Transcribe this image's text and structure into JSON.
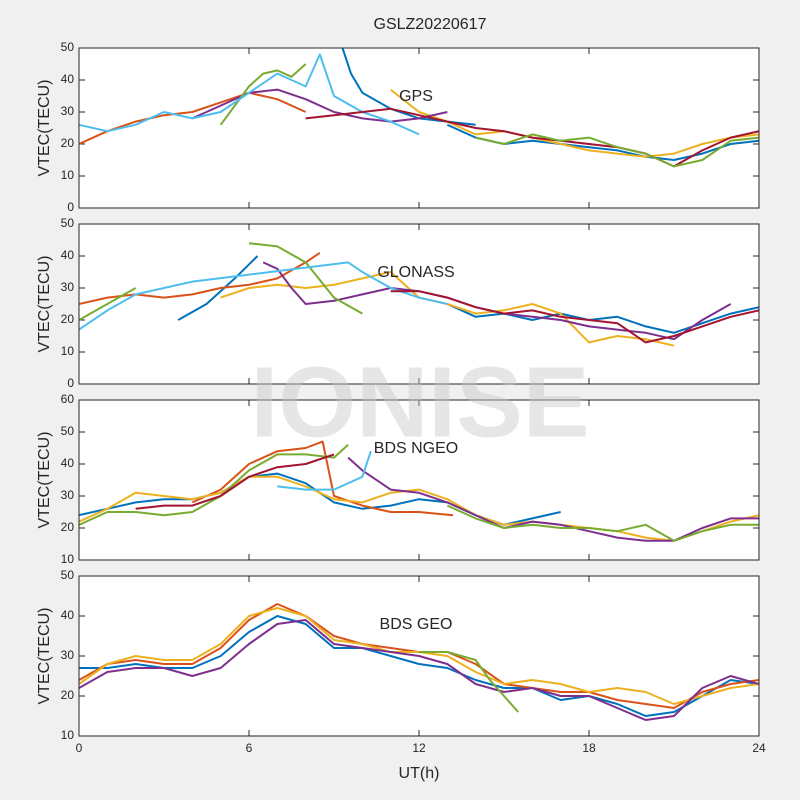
{
  "title": "GSLZ20220617",
  "watermark": "IONISE",
  "chart_data": [
    {
      "type": "line",
      "annotation": "GPS",
      "ylabel": "VTEC(TECU)",
      "xlim": [
        0,
        24
      ],
      "xticks": [
        0,
        6,
        12,
        18,
        24
      ],
      "ylim": [
        0,
        50
      ],
      "yticks": [
        0,
        10,
        20,
        30,
        40,
        50
      ],
      "series": [
        {
          "color": "#0072BD",
          "x": [
            9.3,
            9.6,
            10,
            11,
            12,
            13,
            14
          ],
          "values": [
            50,
            42,
            36,
            31,
            28,
            27,
            26
          ]
        },
        {
          "color": "#0072BD",
          "x": [
            13,
            14,
            15,
            16,
            17,
            18,
            19,
            20,
            21,
            22,
            23,
            24
          ],
          "values": [
            26,
            22,
            20,
            21,
            20,
            19,
            18,
            16,
            15,
            17,
            20,
            21
          ]
        },
        {
          "color": "#D95319",
          "x": [
            0,
            1,
            2,
            3,
            4,
            5,
            6,
            7,
            8
          ],
          "values": [
            20,
            24,
            27,
            29,
            30,
            33,
            36,
            34,
            30
          ]
        },
        {
          "color": "#EDB120",
          "x": [
            11,
            12,
            13,
            14,
            15,
            16,
            17,
            18,
            19,
            20,
            21,
            22,
            23,
            24
          ],
          "values": [
            37,
            30,
            27,
            23,
            24,
            22,
            20,
            18,
            17,
            16,
            17,
            20,
            22,
            23
          ]
        },
        {
          "color": "#7E2F8E",
          "x": [
            4,
            5,
            6,
            7,
            8,
            9,
            10,
            11,
            12,
            13
          ],
          "values": [
            28,
            32,
            36,
            37,
            34,
            30,
            28,
            27,
            28,
            30
          ]
        },
        {
          "color": "#77AC30",
          "x": [
            5,
            5.5,
            6,
            6.5,
            7,
            7.5,
            8
          ],
          "values": [
            26,
            32,
            38,
            42,
            43,
            41,
            45
          ]
        },
        {
          "color": "#4DBEEE",
          "x": [
            0,
            1,
            2,
            3,
            4,
            5,
            6,
            7,
            8,
            8.5,
            9,
            10,
            11,
            12
          ],
          "values": [
            26,
            24,
            26,
            30,
            28,
            30,
            36,
            42,
            38,
            48,
            35,
            30,
            27,
            23
          ]
        },
        {
          "color": "#A2142F",
          "x": [
            8,
            9,
            10,
            11,
            12,
            13,
            14,
            15,
            16,
            17,
            18,
            19,
            20,
            21,
            22,
            23,
            24
          ],
          "values": [
            28,
            29,
            30,
            31,
            29,
            27,
            25,
            24,
            22,
            21,
            20,
            19,
            17,
            13,
            18,
            22,
            24
          ]
        },
        {
          "color": "#77AC30",
          "x": [
            14,
            15,
            16,
            17,
            18,
            19,
            20,
            21,
            22,
            23,
            24
          ],
          "values": [
            22,
            20,
            23,
            21,
            22,
            19,
            17,
            13,
            15,
            21,
            22
          ]
        }
      ]
    },
    {
      "type": "line",
      "annotation": "GLONASS",
      "ylabel": "VTEC(TECU)",
      "xlim": [
        0,
        24
      ],
      "xticks": [
        0,
        6,
        12,
        18,
        24
      ],
      "ylim": [
        0,
        50
      ],
      "yticks": [
        0,
        10,
        20,
        30,
        40,
        50
      ],
      "series": [
        {
          "color": "#0072BD",
          "x": [
            3.5,
            4.5,
            5.5,
            6.3
          ],
          "values": [
            20,
            25,
            33,
            40
          ]
        },
        {
          "color": "#0072BD",
          "x": [
            13,
            14,
            15,
            16,
            17,
            18,
            19,
            20,
            21,
            22,
            23,
            24
          ],
          "values": [
            25,
            21,
            22,
            20,
            22,
            20,
            21,
            18,
            16,
            19,
            22,
            24
          ]
        },
        {
          "color": "#D95319",
          "x": [
            0,
            1,
            2,
            3,
            4,
            5,
            6,
            7,
            8,
            8.5
          ],
          "values": [
            25,
            27,
            28,
            27,
            28,
            30,
            31,
            33,
            38,
            41
          ]
        },
        {
          "color": "#EDB120",
          "x": [
            5,
            6,
            7,
            8,
            9,
            10,
            11,
            12,
            13,
            14,
            15,
            16,
            17,
            18,
            19,
            20,
            21
          ],
          "values": [
            27,
            30,
            31,
            30,
            31,
            33,
            35,
            27,
            25,
            22,
            23,
            25,
            22,
            13,
            15,
            14,
            12
          ]
        },
        {
          "color": "#7E2F8E",
          "x": [
            6.5,
            7,
            7.5,
            8,
            9,
            10,
            11,
            12,
            13,
            14,
            15,
            16,
            17,
            18,
            19,
            20,
            21,
            22,
            23
          ],
          "values": [
            38,
            36,
            30,
            25,
            26,
            28,
            30,
            29,
            27,
            24,
            22,
            21,
            20,
            18,
            17,
            16,
            14,
            20,
            25
          ]
        },
        {
          "color": "#77AC30",
          "x": [
            6,
            7,
            8,
            9,
            10
          ],
          "values": [
            44,
            43,
            38,
            27,
            22
          ]
        },
        {
          "color": "#77AC30",
          "x": [
            0,
            1,
            2
          ],
          "values": [
            20,
            25,
            30
          ]
        },
        {
          "color": "#4DBEEE",
          "x": [
            0,
            1,
            2,
            3,
            4,
            9.5,
            10,
            11,
            12,
            13
          ],
          "values": [
            17,
            23,
            28,
            30,
            32,
            38,
            35,
            30,
            27,
            25
          ]
        },
        {
          "color": "#A2142F",
          "x": [
            11,
            12,
            13,
            14,
            15,
            16,
            17,
            18,
            19,
            20,
            21,
            22,
            23,
            24
          ],
          "values": [
            29,
            29,
            27,
            24,
            22,
            23,
            21,
            20,
            19,
            13,
            15,
            18,
            21,
            23
          ]
        }
      ]
    },
    {
      "type": "line",
      "annotation": "BDS NGEO",
      "ylabel": "VTEC(TECU)",
      "xlim": [
        0,
        24
      ],
      "xticks": [
        0,
        6,
        12,
        18,
        24
      ],
      "ylim": [
        10,
        60
      ],
      "yticks": [
        10,
        20,
        30,
        40,
        50,
        60
      ],
      "series": [
        {
          "color": "#0072BD",
          "x": [
            0,
            1,
            2,
            3,
            4,
            5,
            6,
            7,
            8,
            9,
            10,
            11,
            12,
            13,
            14,
            15,
            16,
            17
          ],
          "values": [
            24,
            26,
            28,
            29,
            29,
            31,
            36,
            37,
            34,
            28,
            26,
            27,
            29,
            28,
            24,
            21,
            23,
            25
          ]
        },
        {
          "color": "#D95319",
          "x": [
            4,
            5,
            6,
            7,
            8,
            8.6,
            9,
            10,
            11,
            12,
            13.2
          ],
          "values": [
            28,
            32,
            40,
            44,
            45,
            47,
            30,
            27,
            25,
            25,
            24
          ]
        },
        {
          "color": "#EDB120",
          "x": [
            0,
            1,
            2,
            3,
            4,
            5,
            6,
            7,
            8,
            9,
            10,
            11,
            12,
            13,
            14,
            15,
            16,
            17,
            18,
            19,
            20,
            21,
            22,
            23,
            24
          ],
          "values": [
            22,
            26,
            31,
            30,
            29,
            31,
            36,
            36,
            33,
            29,
            28,
            31,
            32,
            29,
            24,
            21,
            22,
            21,
            20,
            19,
            17,
            16,
            19,
            22,
            24
          ]
        },
        {
          "color": "#7E2F8E",
          "x": [
            9.5,
            10,
            11,
            12,
            13,
            14,
            15,
            16,
            17,
            18,
            19,
            20,
            21,
            22,
            23,
            24
          ],
          "values": [
            42,
            38,
            32,
            31,
            28,
            24,
            20,
            22,
            21,
            19,
            17,
            16,
            16,
            20,
            23,
            23
          ]
        },
        {
          "color": "#77AC30",
          "x": [
            0,
            1,
            2,
            3,
            4,
            5,
            6,
            7,
            8,
            9,
            9.5
          ],
          "values": [
            21,
            25,
            25,
            24,
            25,
            30,
            38,
            43,
            43,
            42,
            46
          ]
        },
        {
          "color": "#77AC30",
          "x": [
            13,
            14,
            15,
            16,
            17,
            18,
            19,
            20,
            21,
            22,
            23,
            24
          ],
          "values": [
            27,
            23,
            20,
            21,
            20,
            20,
            19,
            21,
            16,
            19,
            21,
            21
          ]
        },
        {
          "color": "#4DBEEE",
          "x": [
            7,
            8,
            9,
            10,
            10.3
          ],
          "values": [
            33,
            32,
            32,
            36,
            44
          ]
        },
        {
          "color": "#A2142F",
          "x": [
            2,
            3,
            4,
            5,
            6,
            7,
            8,
            9
          ],
          "values": [
            26,
            27,
            27,
            30,
            36,
            39,
            40,
            43
          ]
        }
      ]
    },
    {
      "type": "line",
      "annotation": "BDS GEO",
      "ylabel": "VTEC(TECU)",
      "xlabel": "UT(h)",
      "xlim": [
        0,
        24
      ],
      "xticks": [
        0,
        6,
        12,
        18,
        24
      ],
      "ylim": [
        10,
        50
      ],
      "yticks": [
        10,
        20,
        30,
        40,
        50
      ],
      "series": [
        {
          "color": "#0072BD",
          "x": [
            0,
            1,
            2,
            3,
            4,
            5,
            6,
            7,
            8,
            9,
            10,
            11,
            12,
            13,
            14,
            15,
            16,
            17,
            18,
            19,
            20,
            21,
            22,
            23,
            24
          ],
          "values": [
            27,
            27,
            28,
            27,
            27,
            30,
            36,
            40,
            38,
            32,
            32,
            30,
            28,
            27,
            24,
            22,
            22,
            19,
            20,
            18,
            15,
            16,
            20,
            24,
            23
          ]
        },
        {
          "color": "#D95319",
          "x": [
            0,
            1,
            2,
            3,
            4,
            5,
            6,
            7,
            8,
            9,
            10,
            11,
            12,
            13,
            14,
            15,
            16,
            17,
            18,
            19,
            20,
            21,
            22,
            23,
            24
          ],
          "values": [
            24,
            28,
            29,
            28,
            28,
            32,
            39,
            43,
            40,
            35,
            33,
            32,
            31,
            31,
            28,
            23,
            22,
            21,
            21,
            19,
            18,
            17,
            21,
            23,
            24
          ]
        },
        {
          "color": "#EDB120",
          "x": [
            0,
            1,
            2,
            3,
            4,
            5,
            6,
            7,
            8,
            9,
            10,
            11,
            12,
            13,
            14,
            15,
            16,
            17,
            18,
            19,
            20,
            21,
            22,
            23,
            24
          ],
          "values": [
            23,
            28,
            30,
            29,
            29,
            33,
            40,
            42,
            40,
            34,
            33,
            31,
            31,
            30,
            26,
            23,
            24,
            23,
            21,
            22,
            21,
            18,
            20,
            22,
            23
          ]
        },
        {
          "color": "#7E2F8E",
          "x": [
            0,
            1,
            2,
            3,
            4,
            5,
            6,
            7,
            8,
            9,
            10,
            11,
            12,
            13,
            14,
            15,
            16,
            17,
            18,
            19,
            20,
            21,
            22,
            23,
            24
          ],
          "values": [
            22,
            26,
            27,
            27,
            25,
            27,
            33,
            38,
            39,
            33,
            32,
            31,
            30,
            28,
            23,
            21,
            22,
            20,
            20,
            17,
            14,
            15,
            22,
            25,
            23
          ]
        },
        {
          "color": "#77AC30",
          "x": [
            12,
            13,
            14,
            14.5,
            15,
            15.5
          ],
          "values": [
            31,
            31,
            29,
            24,
            20,
            16
          ]
        }
      ]
    }
  ]
}
